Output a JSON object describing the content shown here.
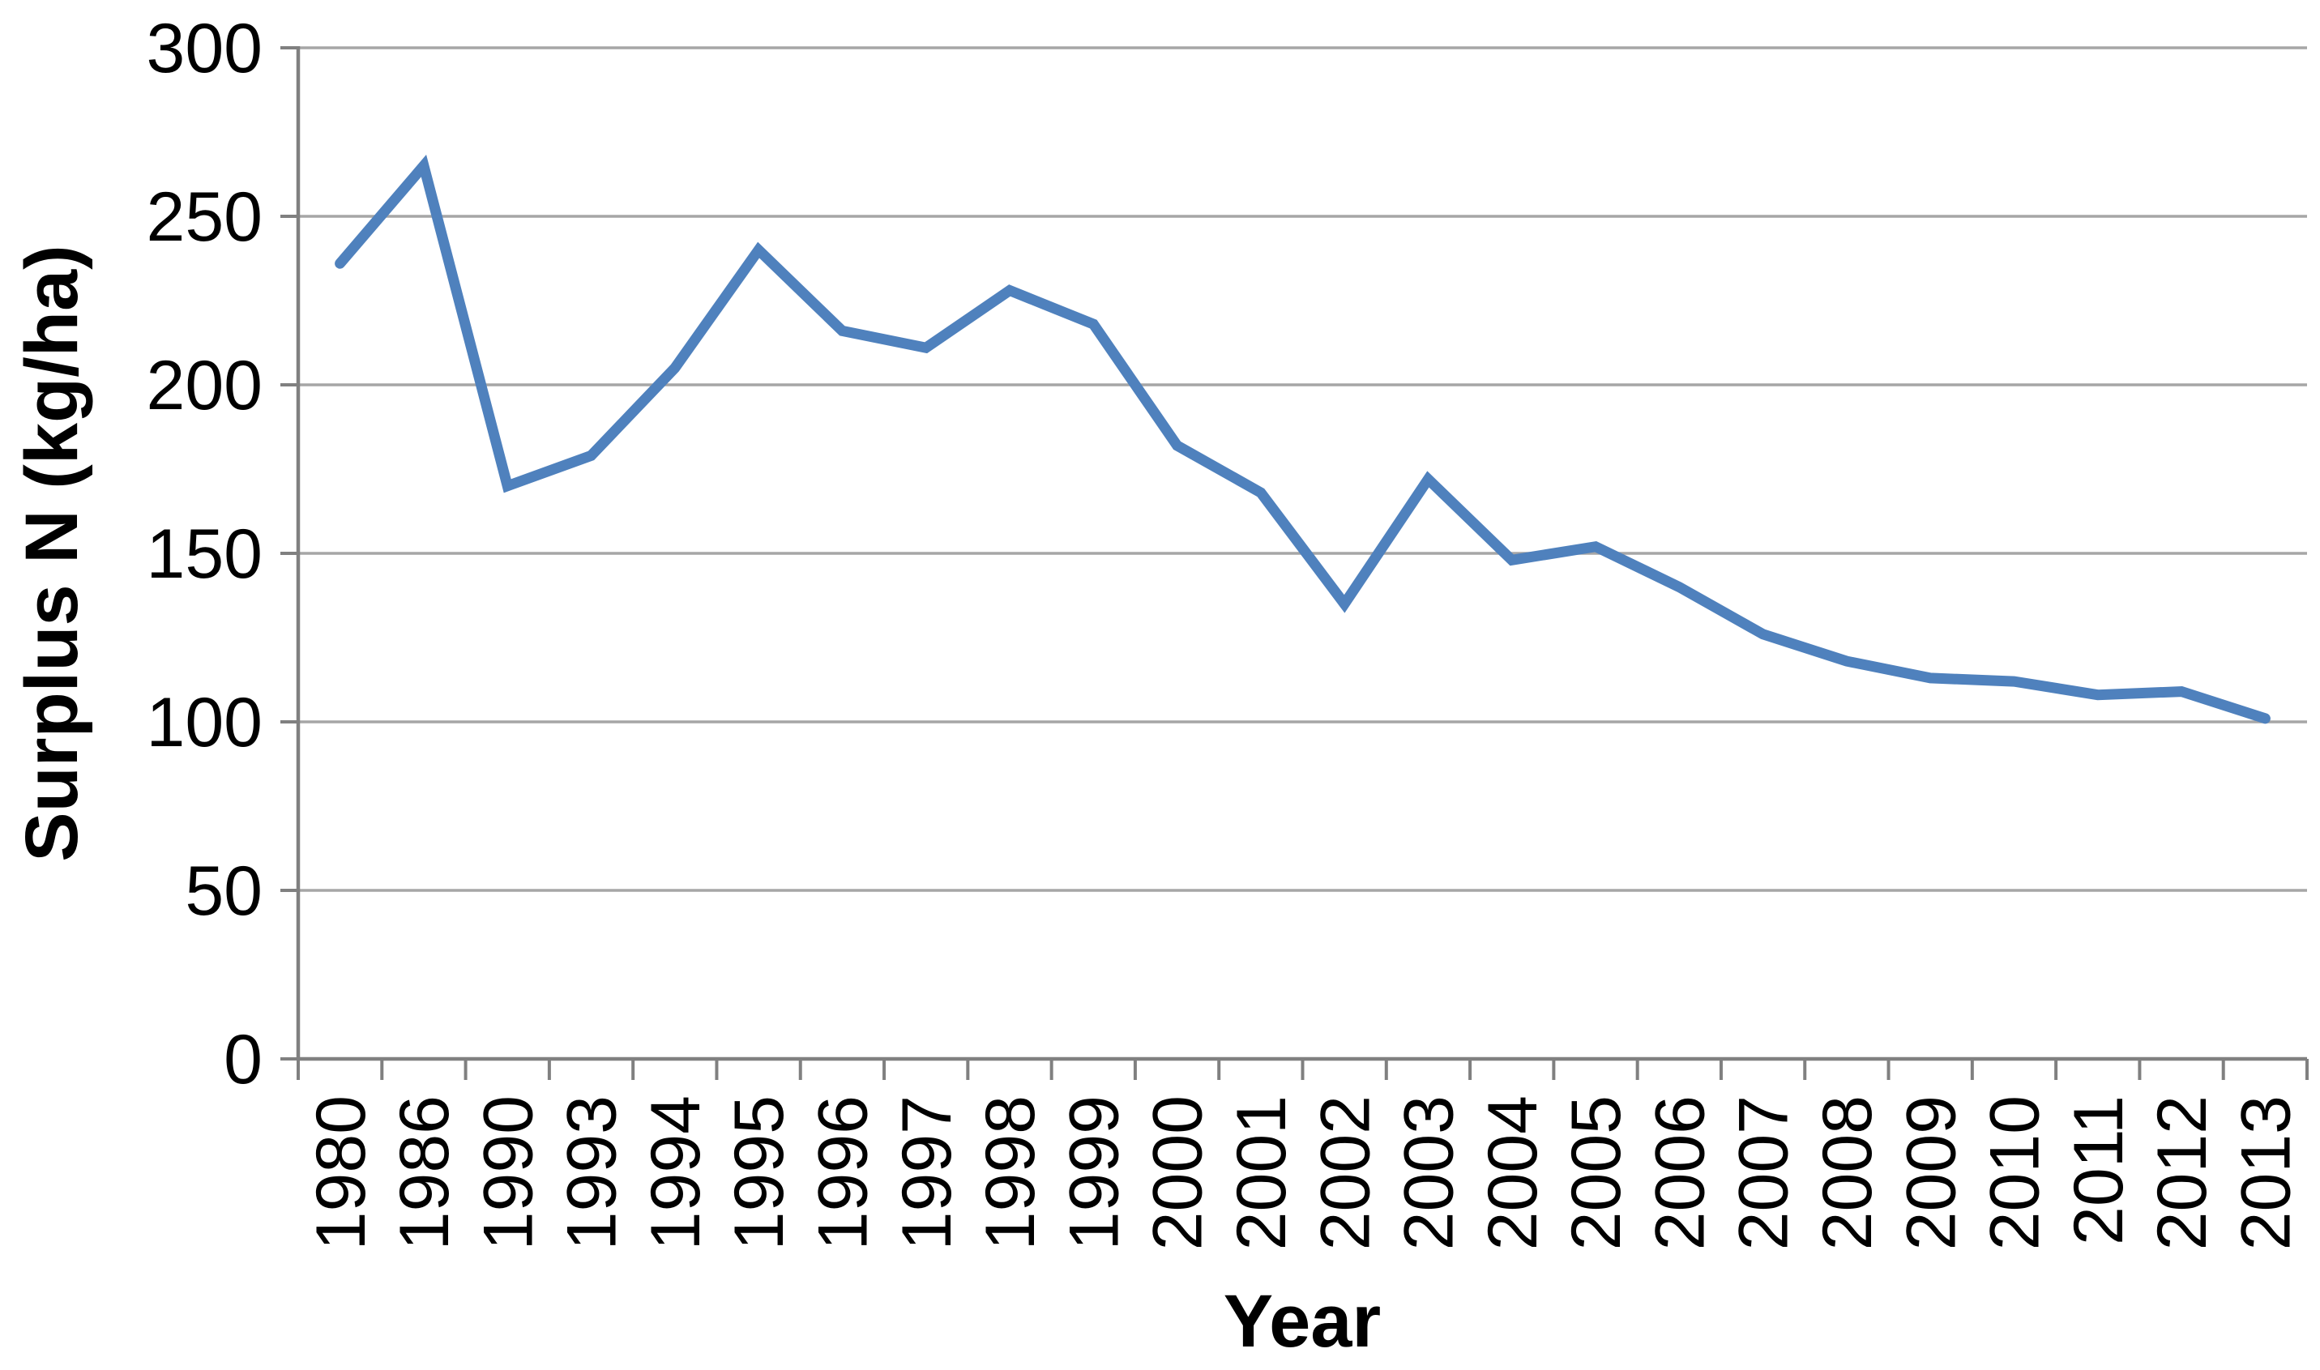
{
  "chart_data": {
    "type": "line",
    "title": "",
    "xlabel": "Year",
    "ylabel": "Surplus N (kg/ha)",
    "categories": [
      "1980",
      "1986",
      "1990",
      "1993",
      "1994",
      "1995",
      "1996",
      "1997",
      "1998",
      "1999",
      "2000",
      "2001",
      "2002",
      "2003",
      "2004",
      "2005",
      "2006",
      "2007",
      "2008",
      "2009",
      "2010",
      "2011",
      "2012",
      "2013"
    ],
    "series": [
      {
        "name": "Surplus N",
        "values": [
          236,
          265,
          170,
          179,
          205,
          240,
          216,
          211,
          228,
          218,
          182,
          168,
          135,
          172,
          148,
          152,
          140,
          126,
          118,
          113,
          112,
          108,
          109,
          101
        ]
      }
    ],
    "ylim": [
      0,
      300
    ],
    "ytick_interval": 50,
    "yticks": [
      300,
      250,
      200,
      150,
      100,
      50,
      0
    ],
    "grid": "horizontal",
    "legend_position": "none",
    "colors": {
      "line": "#4F81BD",
      "gridline": "#A6A6A6",
      "axis": "#808080",
      "text": "#000000",
      "background": "#FFFFFF"
    }
  }
}
